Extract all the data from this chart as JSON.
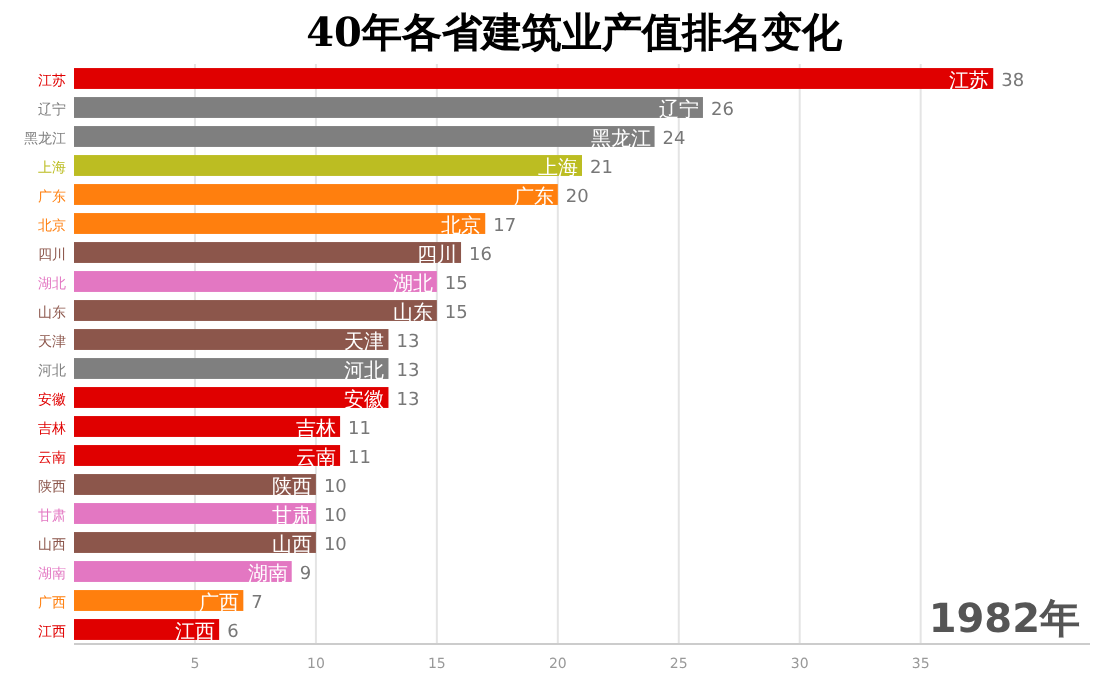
{
  "chart_data": {
    "type": "bar",
    "orientation": "horizontal",
    "title": "40年各省建筑业产值排名变化",
    "categories": [
      "江苏",
      "辽宁",
      "黑龙江",
      "上海",
      "广东",
      "北京",
      "四川",
      "湖北",
      "山东",
      "天津",
      "河北",
      "安徽",
      "吉林",
      "云南",
      "陕西",
      "甘肃",
      "山西",
      "湖南",
      "广西",
      "江西"
    ],
    "values": [
      38,
      26,
      24,
      21,
      20,
      17,
      16,
      15,
      15,
      13,
      13,
      13,
      11,
      11,
      10,
      10,
      10,
      9,
      7,
      6
    ],
    "colors": [
      "#e00000",
      "#7f7f7f",
      "#7f7f7f",
      "#bcbd22",
      "#ff7f0e",
      "#ff7f0e",
      "#8c564b",
      "#e377c2",
      "#8c564b",
      "#8c564b",
      "#7f7f7f",
      "#e00000",
      "#e00000",
      "#e00000",
      "#8c564b",
      "#e377c2",
      "#8c564b",
      "#e377c2",
      "#ff7f0e",
      "#e00000"
    ],
    "xlim": [
      0,
      42
    ],
    "xticks": [
      5,
      10,
      15,
      20,
      25,
      30,
      35
    ],
    "grid": "x",
    "data_labels": true,
    "annotations": [
      "1982年"
    ]
  }
}
